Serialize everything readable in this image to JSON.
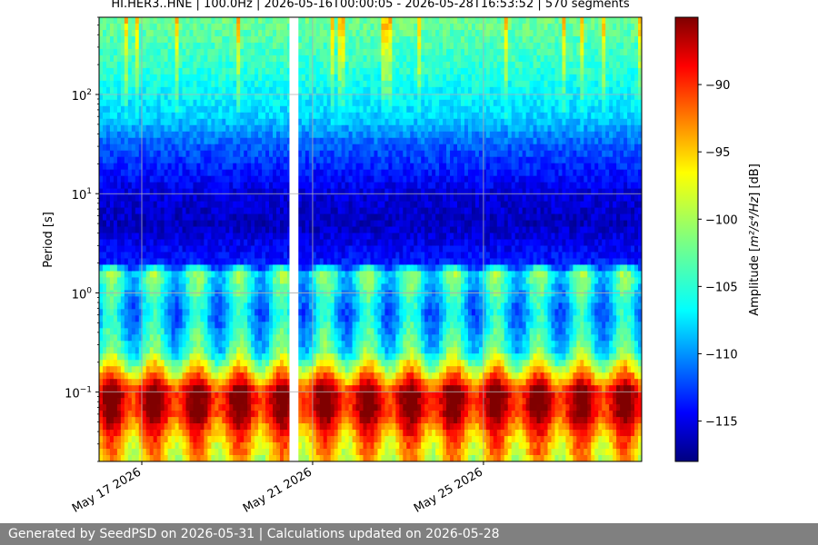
{
  "chart_data": {
    "type": "heatmap",
    "title": "HI.HER3..HNE | 100.0Hz | 2026-05-16T00:00:05 - 2026-05-28T16:53:52 | 570 segments",
    "ylabel": "Period [s]",
    "xlabel": "",
    "y_scale": "log",
    "y_inverted": true,
    "ylim": [
      0.02,
      600
    ],
    "y_ticks": [
      {
        "value": 0.1,
        "base": "10",
        "exp": "−1"
      },
      {
        "value": 1,
        "base": "10",
        "exp": "0"
      },
      {
        "value": 10,
        "base": "10",
        "exp": "1"
      },
      {
        "value": 100,
        "base": "10",
        "exp": "2"
      }
    ],
    "x_ticks": [
      {
        "date": "2026-05-17",
        "label": "May 17 2026"
      },
      {
        "date": "2026-05-21",
        "label": "May 21 2026"
      },
      {
        "date": "2026-05-25",
        "label": "May 25 2026"
      }
    ],
    "xlim": [
      "2026-05-16T00:00:05",
      "2026-05-28T16:53:52"
    ],
    "data_gap": [
      "2026-05-20T11:00:00",
      "2026-05-20T16:00:00"
    ],
    "grid": true,
    "colorbar": {
      "label_prefix": "Amplitude [",
      "label_unit": "m²/s⁴/Hz",
      "label_suffix": "] [dB]",
      "ticks": [
        "−90",
        "−95",
        "−100",
        "−105",
        "−110",
        "−115"
      ],
      "tick_values": [
        -90,
        -95,
        -100,
        -105,
        -110,
        -115
      ],
      "range": [
        -118,
        -85
      ],
      "colormap": "jet"
    },
    "mean_profile_db": [
      {
        "period": 0.02,
        "db": -97
      },
      {
        "period": 0.035,
        "db": -94
      },
      {
        "period": 0.06,
        "db": -88
      },
      {
        "period": 0.1,
        "db": -87
      },
      {
        "period": 0.14,
        "db": -94
      },
      {
        "period": 0.25,
        "db": -104
      },
      {
        "period": 0.6,
        "db": -108
      },
      {
        "period": 1.0,
        "db": -106
      },
      {
        "period": 1.6,
        "db": -104
      },
      {
        "period": 2.0,
        "db": -113
      },
      {
        "period": 5.0,
        "db": -116
      },
      {
        "period": 10,
        "db": -115
      },
      {
        "period": 30,
        "db": -111
      },
      {
        "period": 60,
        "db": -107
      },
      {
        "period": 200,
        "db": -104
      },
      {
        "period": 600,
        "db": -102
      }
    ]
  },
  "footer": {
    "text": "Generated by SeedPSD on 2026-05-31 | Calculations updated on 2026-05-28"
  }
}
